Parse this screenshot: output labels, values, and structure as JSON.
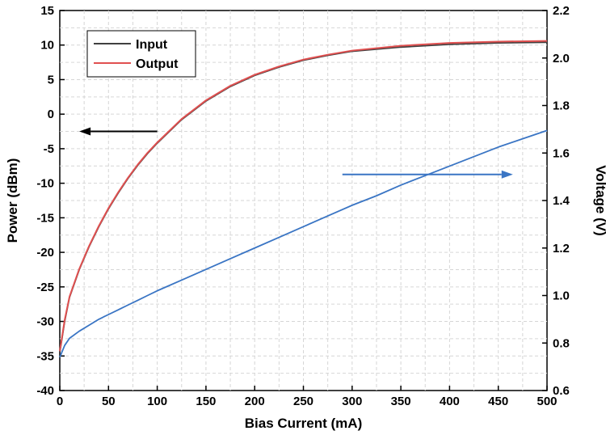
{
  "chart_data": {
    "type": "line",
    "xlabel": "Bias Current (mA)",
    "ylabel": "Power (dBm)",
    "y2label": "Voltage (V)",
    "xlim": [
      0,
      500
    ],
    "ylim": [
      -40,
      15
    ],
    "y2lim": [
      0.6,
      2.2
    ],
    "x_ticks": [
      0,
      50,
      100,
      150,
      200,
      250,
      300,
      350,
      400,
      450,
      500
    ],
    "y_ticks": [
      -40,
      -35,
      -30,
      -25,
      -20,
      -15,
      -10,
      -5,
      0,
      5,
      10,
      15
    ],
    "y2_ticks": [
      0.6,
      0.8,
      1.0,
      1.2,
      1.4,
      1.6,
      1.8,
      2.0,
      2.2
    ],
    "y2_tick_labels": [
      "0.6",
      "0.8",
      "1.0",
      "1.2",
      "1.4",
      "1.6",
      "1.8",
      "2.0",
      "2.2"
    ],
    "grid": true,
    "legend_position": "top-left",
    "series": [
      {
        "name": "Input",
        "axis": "left",
        "color": "#404040",
        "x": [
          0,
          5,
          10,
          20,
          30,
          40,
          50,
          60,
          70,
          80,
          90,
          100,
          125,
          150,
          175,
          200,
          225,
          250,
          275,
          300,
          350,
          400,
          450,
          500
        ],
        "y": [
          -34.5,
          -30,
          -26.5,
          -22.5,
          -19.2,
          -16.3,
          -13.7,
          -11.4,
          -9.3,
          -7.4,
          -5.7,
          -4.2,
          -0.8,
          1.9,
          4.0,
          5.6,
          6.8,
          7.8,
          8.5,
          9.1,
          9.7,
          10.1,
          10.3,
          10.4
        ]
      },
      {
        "name": "Output",
        "axis": "left",
        "color": "#e05050",
        "x": [
          0,
          5,
          10,
          20,
          30,
          40,
          50,
          60,
          70,
          80,
          90,
          100,
          125,
          150,
          175,
          200,
          225,
          250,
          275,
          300,
          350,
          400,
          450,
          500
        ],
        "y": [
          -34.3,
          -29.8,
          -26.4,
          -22.4,
          -19.1,
          -16.2,
          -13.6,
          -11.3,
          -9.2,
          -7.3,
          -5.6,
          -4.1,
          -0.7,
          2.0,
          4.1,
          5.7,
          6.9,
          7.9,
          8.6,
          9.2,
          9.9,
          10.3,
          10.5,
          10.6
        ]
      },
      {
        "name": "",
        "axis": "right",
        "color": "#3a75c4",
        "x": [
          0,
          5,
          10,
          20,
          30,
          40,
          50,
          60,
          70,
          80,
          90,
          100,
          125,
          150,
          175,
          200,
          225,
          250,
          275,
          300,
          325,
          350,
          375,
          400,
          425,
          450,
          475,
          500
        ],
        "y": [
          0.74,
          0.79,
          0.82,
          0.85,
          0.875,
          0.9,
          0.92,
          0.94,
          0.96,
          0.98,
          1.0,
          1.02,
          1.065,
          1.11,
          1.155,
          1.2,
          1.245,
          1.29,
          1.335,
          1.38,
          1.42,
          1.465,
          1.505,
          1.545,
          1.585,
          1.625,
          1.66,
          1.695
        ]
      }
    ],
    "annotations": [
      {
        "type": "arrow",
        "direction": "left",
        "color": "#000000",
        "x_from": 100,
        "x_to": 20,
        "y": -2.5,
        "axis": "left"
      },
      {
        "type": "arrow",
        "direction": "right",
        "color": "#3a75c4",
        "x_from": 290,
        "x_to": 465,
        "y": 1.51,
        "axis": "right"
      }
    ]
  }
}
